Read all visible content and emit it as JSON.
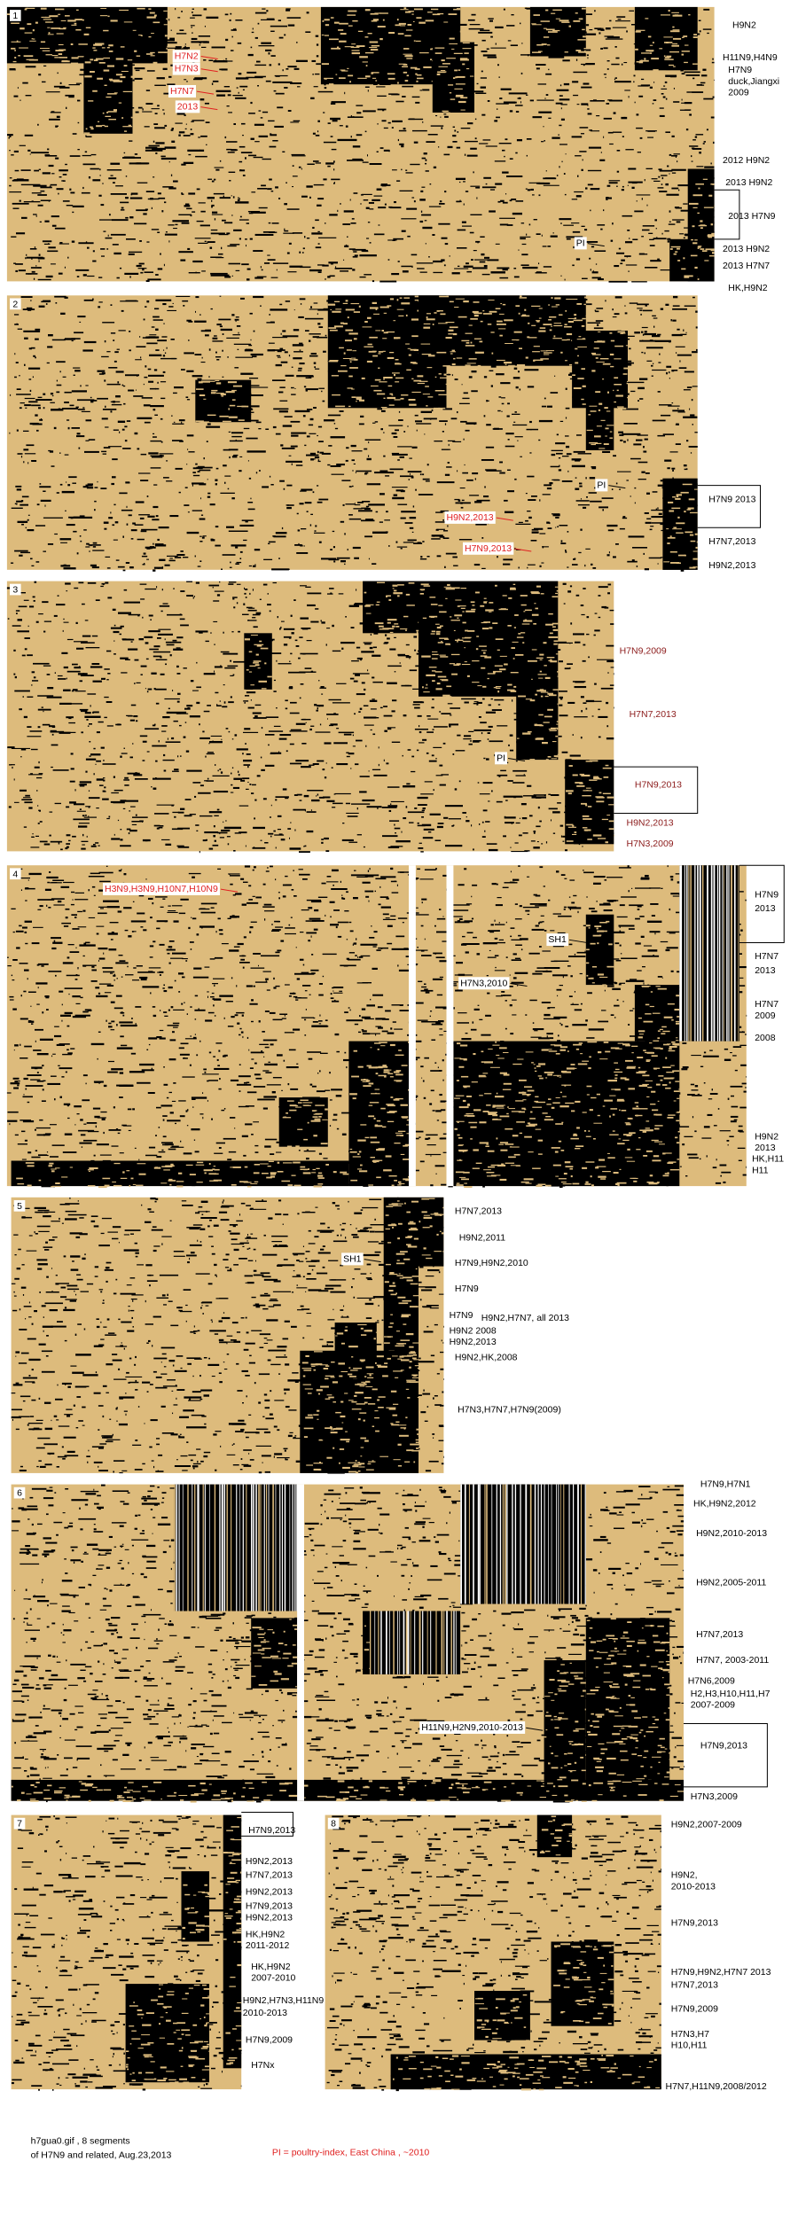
{
  "panels": [
    {
      "number": "1",
      "labels": [
        "H9N2",
        "H11N9,H4N9",
        "H7N9",
        "duck,Jiangxi",
        "2009",
        "2012 H9N2",
        "2013 H9N2",
        "2013 H7N9",
        "2013 H9N2",
        "2013 H7N7",
        "HK,H9N2"
      ],
      "annotations": [
        "H7N2",
        "H7N3",
        "H7N7",
        "2013",
        "PI"
      ]
    },
    {
      "number": "2",
      "labels": [
        "H7N9 2013",
        "H7N7,2013",
        "H9N2,2013"
      ],
      "annotations": [
        "PI",
        "H9N2,2013",
        "H7N9,2013"
      ]
    },
    {
      "number": "3",
      "labels": [
        "H7N9,2009",
        "H7N7,2013",
        "H7N9,2013",
        "H9N2,2013",
        "H7N3,2009"
      ],
      "annotations": [
        "PI"
      ]
    },
    {
      "number": "4",
      "labels": [
        "H7N9",
        "2013",
        "H7N7",
        "2013",
        "H7N7",
        "2009",
        "2008",
        "H9N2",
        "2013",
        "HK,H11",
        "H11"
      ],
      "annotations": [
        "H3N9,H3N9,H10N7,H10N9",
        "SH1",
        "H7N3,2010"
      ]
    },
    {
      "number": "5",
      "labels": [
        "H7N7,2013",
        "H9N2,2011",
        "H7N9,H9N2,2010",
        "H7N9",
        "H7N9",
        "H9N2,H7N7, all 2013",
        "H9N2 2008",
        "H9N2,2013",
        "H9N2,HK,2008",
        "H7N3,H7N7,H7N9(2009)"
      ],
      "annotations": [
        "SH1"
      ]
    },
    {
      "number": "6",
      "labels": [
        "H7N9,H7N1",
        "HK,H9N2,2012",
        "H9N2,2010-2013",
        "H9N2,2005-2011",
        "H7N7,2013",
        "H7N7, 2003-2011",
        "H7N6,2009",
        "H2,H3,H10,H11,H7",
        "2007-2009",
        "H7N9,2013",
        "H7N3,2009"
      ],
      "annotations": [
        "H11N9,H2N9,2010-2013"
      ]
    },
    {
      "number": "7",
      "labels": [
        "H7N9,2013",
        "H9N2,2013",
        "H7N7,2013",
        "H9N2,2013",
        "H7N9,2013",
        "H9N2,2013",
        "HK,H9N2",
        "2011-2012",
        "HK,H9N2",
        "2007-2010",
        "H9N2,H7N3,H11N9",
        "2010-2013",
        "H7N9,2009",
        "H7Nx"
      ],
      "annotations": []
    },
    {
      "number": "8",
      "labels": [
        "H9N2,2007-2009",
        "H9N2,",
        "2010-2013",
        "H7N9,2013",
        "H7N9,H9N2,H7N7 2013",
        "H7N7,2013",
        "H7N9,2009",
        "H7N3,H7",
        "H10,H11",
        "H7N7,H11N9,2008/2012"
      ],
      "annotations": []
    }
  ],
  "footer": {
    "line1": "h7gua0.gif , 8 segments",
    "line2": "of H7N9 and related, Aug.23,2013",
    "note": "PI = poultry-index, East China , ~2010"
  }
}
